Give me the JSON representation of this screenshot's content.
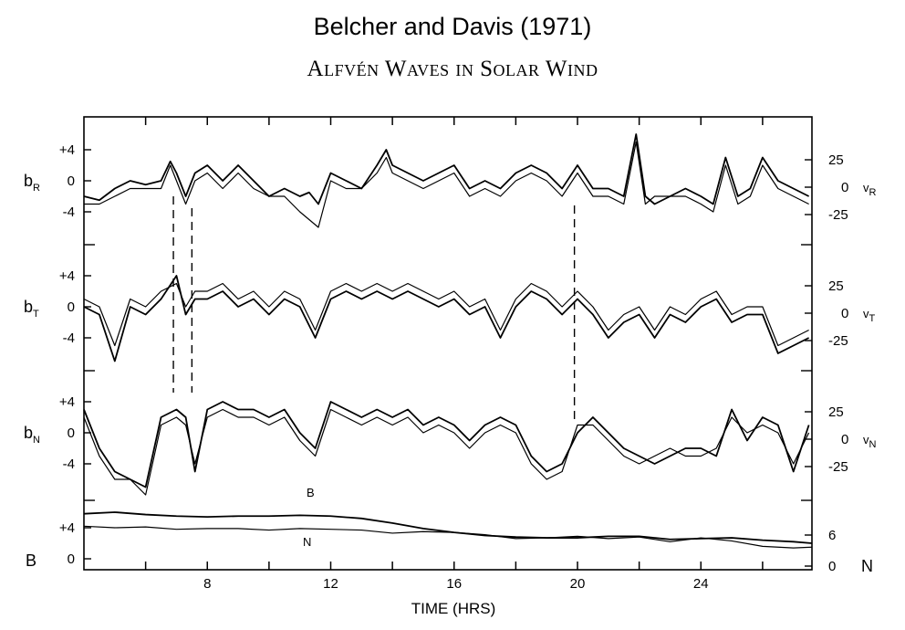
{
  "title": "Belcher and Davis (1971)",
  "subtitle": "Alfvén Waves in Solar Wind",
  "chart_data": {
    "type": "line",
    "xlabel": "TIME (HRS)",
    "x_ticks": [
      "8",
      "12",
      "16",
      "20",
      "24"
    ],
    "xlim": [
      4,
      27.6
    ],
    "dashed_markers_hours": [
      6.9,
      7.5,
      19.9
    ],
    "panels": [
      {
        "id": "R",
        "left_label": "b",
        "left_sub": "R",
        "right_label": "v",
        "right_sub": "R",
        "left_ticks": [
          "+4",
          "0",
          "-4"
        ],
        "right_ticks": [
          "25",
          "0",
          "-25"
        ],
        "ylim_left": [
          -6.5,
          6
        ],
        "ylim_right": [
          -40,
          37
        ],
        "series": [
          {
            "x": [
              4,
              4.5,
              5,
              5.5,
              6,
              6.5,
              6.8,
              7.0,
              7.3,
              7.6,
              8,
              8.5,
              9,
              9.5,
              10,
              10.5,
              11,
              11.3,
              11.6,
              12,
              12.5,
              13,
              13.5,
              13.8,
              14,
              14.5,
              15,
              15.5,
              16,
              16.5,
              17,
              17.5,
              18,
              18.5,
              19,
              19.5,
              20,
              20.5,
              21,
              21.5,
              21.9,
              22.2,
              22.5,
              23,
              23.5,
              24,
              24.4,
              24.8,
              25.2,
              25.6,
              26,
              26.5,
              27,
              27.5
            ],
            "y": [
              -2,
              -2.5,
              -1,
              0,
              -0.5,
              0,
              2.5,
              1,
              -2,
              1,
              2,
              0,
              2,
              0,
              -2,
              -1,
              -2,
              -1.5,
              -3,
              1,
              0,
              -1,
              2,
              4,
              2,
              1,
              0,
              1,
              2,
              -1,
              0,
              -1,
              1,
              2,
              1,
              -1,
              2,
              -1,
              -1,
              -2,
              6,
              -2,
              -3,
              -2,
              -1,
              -2,
              -3,
              3,
              -2,
              -1,
              3,
              0,
              -1,
              -2
            ]
          },
          {
            "x": [
              4,
              4.5,
              5,
              5.5,
              6,
              6.5,
              6.8,
              7.0,
              7.3,
              7.6,
              8,
              8.5,
              9,
              9.5,
              10,
              10.5,
              11,
              11.3,
              11.6,
              12,
              12.5,
              13,
              13.5,
              13.8,
              14,
              14.5,
              15,
              15.5,
              16,
              16.5,
              17,
              17.5,
              18,
              18.5,
              19,
              19.5,
              20,
              20.5,
              21,
              21.5,
              21.9,
              22.2,
              22.5,
              23,
              23.5,
              24,
              24.4,
              24.8,
              25.2,
              25.6,
              26,
              26.5,
              27,
              27.5
            ],
            "y": [
              -3,
              -3,
              -2,
              -1,
              -1,
              -1,
              2,
              0,
              -3,
              0,
              1,
              -1,
              1,
              -1,
              -2,
              -2,
              -4,
              -5,
              -6,
              0,
              -1,
              -1,
              1,
              3,
              1,
              0,
              -1,
              0,
              1,
              -2,
              -1,
              -2,
              0,
              1,
              0,
              -2,
              1,
              -2,
              -2,
              -3,
              5,
              -3,
              -2,
              -2,
              -2,
              -3,
              -4,
              2,
              -3,
              -2,
              2,
              -1,
              -2,
              -3
            ]
          }
        ]
      },
      {
        "id": "T",
        "left_label": "b",
        "left_sub": "T",
        "right_label": "v",
        "right_sub": "T",
        "left_ticks": [
          "+4",
          "0",
          "-4"
        ],
        "right_ticks": [
          "25",
          "0",
          "-25"
        ],
        "ylim_left": [
          -8,
          6
        ],
        "ylim_right": [
          -45,
          37
        ],
        "series": [
          {
            "x": [
              4,
              4.5,
              5,
              5.5,
              6,
              6.5,
              7,
              7.3,
              7.6,
              8,
              8.5,
              9,
              9.5,
              10,
              10.5,
              11,
              11.5,
              12,
              12.5,
              13,
              13.5,
              14,
              14.5,
              15,
              15.5,
              16,
              16.5,
              17,
              17.5,
              18,
              18.5,
              19,
              19.5,
              20,
              20.5,
              21,
              21.5,
              22,
              22.5,
              23,
              23.5,
              24,
              24.5,
              25,
              25.5,
              26,
              26.5,
              27,
              27.5
            ],
            "y": [
              0,
              -1,
              -7,
              0,
              -1,
              1,
              4,
              -1,
              1,
              1,
              2,
              0,
              1,
              -1,
              1,
              0,
              -4,
              1,
              2,
              1,
              2,
              1,
              2,
              1,
              0,
              1,
              -1,
              0,
              -4,
              0,
              2,
              1,
              -1,
              1,
              -1,
              -4,
              -2,
              -1,
              -4,
              -1,
              -2,
              0,
              1,
              -2,
              -1,
              -1,
              -6,
              -5,
              -4
            ]
          },
          {
            "x": [
              4,
              4.5,
              5,
              5.5,
              6,
              6.5,
              7,
              7.3,
              7.6,
              8,
              8.5,
              9,
              9.5,
              10,
              10.5,
              11,
              11.5,
              12,
              12.5,
              13,
              13.5,
              14,
              14.5,
              15,
              15.5,
              16,
              16.5,
              17,
              17.5,
              18,
              18.5,
              19,
              19.5,
              20,
              20.5,
              21,
              21.5,
              22,
              22.5,
              23,
              23.5,
              24,
              24.5,
              25,
              25.5,
              26,
              26.5,
              27,
              27.5
            ],
            "y": [
              1,
              0,
              -5,
              1,
              0,
              2,
              3,
              0,
              2,
              2,
              3,
              1,
              2,
              0,
              2,
              1,
              -3,
              2,
              3,
              2,
              3,
              2,
              3,
              2,
              1,
              2,
              0,
              1,
              -3,
              1,
              3,
              2,
              0,
              2,
              0,
              -3,
              -1,
              0,
              -3,
              0,
              -1,
              1,
              2,
              -1,
              0,
              0,
              -5,
              -4,
              -3
            ]
          }
        ]
      },
      {
        "id": "N",
        "left_label": "b",
        "left_sub": "N",
        "right_label": "v",
        "right_sub": "N",
        "left_ticks": [
          "+4",
          "0",
          "-4"
        ],
        "right_ticks": [
          "25",
          "0",
          "-25"
        ],
        "ylim_left": [
          -10,
          6
        ],
        "ylim_right": [
          -55,
          37
        ],
        "series": [
          {
            "x": [
              4,
              4.5,
              5,
              5.5,
              6,
              6.5,
              7,
              7.3,
              7.6,
              8,
              8.5,
              9,
              9.5,
              10,
              10.5,
              11,
              11.5,
              12,
              12.5,
              13,
              13.5,
              14,
              14.5,
              15,
              15.5,
              16,
              16.5,
              17,
              17.5,
              18,
              18.5,
              19,
              19.5,
              20,
              20.5,
              21,
              21.5,
              22,
              22.5,
              23,
              23.5,
              24,
              24.5,
              25,
              25.5,
              26,
              26.5,
              27,
              27.5
            ],
            "y": [
              3,
              -2,
              -5,
              -6,
              -7,
              2,
              3,
              2,
              -5,
              3,
              4,
              3,
              3,
              2,
              3,
              0,
              -2,
              4,
              3,
              2,
              3,
              2,
              3,
              1,
              2,
              1,
              -1,
              1,
              2,
              1,
              -3,
              -5,
              -4,
              0,
              2,
              0,
              -2,
              -3,
              -4,
              -3,
              -2,
              -2,
              -3,
              3,
              -1,
              2,
              1,
              -5,
              1
            ]
          },
          {
            "x": [
              4,
              4.5,
              5,
              5.5,
              6,
              6.5,
              7,
              7.3,
              7.6,
              8,
              8.5,
              9,
              9.5,
              10,
              10.5,
              11,
              11.5,
              12,
              12.5,
              13,
              13.5,
              14,
              14.5,
              15,
              15.5,
              16,
              16.5,
              17,
              17.5,
              18,
              18.5,
              19,
              19.5,
              20,
              20.5,
              21,
              21.5,
              22,
              22.5,
              23,
              23.5,
              24,
              24.5,
              25,
              25.5,
              26,
              26.5,
              27,
              27.5
            ],
            "y": [
              2,
              -3,
              -6,
              -6,
              -8,
              1,
              2,
              1,
              -4,
              2,
              3,
              2,
              2,
              1,
              2,
              -1,
              -3,
              3,
              2,
              1,
              2,
              1,
              2,
              0,
              1,
              0,
              -2,
              0,
              1,
              0,
              -4,
              -6,
              -5,
              1,
              1,
              -1,
              -3,
              -4,
              -3,
              -2,
              -3,
              -3,
              -2,
              2,
              0,
              1,
              0,
              -4,
              0
            ]
          }
        ]
      },
      {
        "id": "B",
        "left_label": "B",
        "right_label": "N",
        "left_ticks": [
          "+4",
          "0"
        ],
        "right_ticks": [
          "6",
          "0"
        ],
        "series": [
          {
            "name": "B",
            "x": [
              4,
              5,
              6,
              7,
              8,
              9,
              10,
              11,
              12,
              13,
              14,
              15,
              16,
              17,
              18,
              19,
              20,
              21,
              22,
              23,
              24,
              25,
              26,
              27,
              27.6
            ],
            "y": [
              5.8,
              6.0,
              5.7,
              5.5,
              5.4,
              5.5,
              5.5,
              5.6,
              5.5,
              5.2,
              4.6,
              3.9,
              3.4,
              3.0,
              2.8,
              2.7,
              2.7,
              2.9,
              2.9,
              2.5,
              2.6,
              2.7,
              2.4,
              2.2,
              2.0
            ]
          },
          {
            "name": "N",
            "x": [
              4,
              5,
              6,
              7,
              8,
              9,
              10,
              11,
              12,
              13,
              14,
              15,
              16,
              17,
              18,
              19,
              20,
              21,
              22,
              23,
              24,
              25,
              26,
              27,
              27.6
            ],
            "y": [
              4.2,
              4.0,
              4.1,
              3.8,
              3.9,
              3.9,
              3.7,
              3.9,
              3.8,
              3.7,
              3.3,
              3.5,
              3.4,
              3.1,
              2.6,
              2.7,
              2.9,
              2.6,
              2.8,
              2.2,
              2.7,
              2.3,
              1.6,
              1.4,
              1.5
            ]
          }
        ],
        "series_labels": [
          "B",
          "N"
        ]
      }
    ]
  }
}
